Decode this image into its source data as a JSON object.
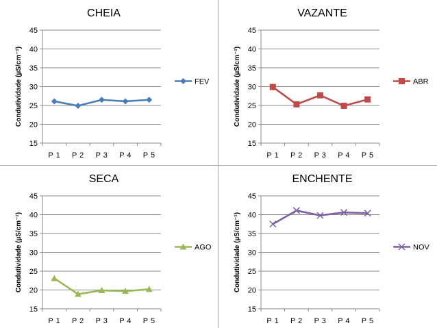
{
  "colors": {
    "grid": "#898989",
    "axis": "#898989",
    "divider": "#a6a6a6"
  },
  "chart_data": [
    {
      "type": "line",
      "title": "CHEIA",
      "ylabel": "Condutividade  (µS/cm⁻¹)",
      "categories": [
        "P 1",
        "P 2",
        "P 3",
        "P 4",
        "P 5"
      ],
      "ylim": [
        15,
        45
      ],
      "yticks": [
        15,
        20,
        25,
        30,
        35,
        40,
        45
      ],
      "grid": true,
      "legend_position": "right",
      "series": [
        {
          "name": "FEV",
          "values": [
            26.1,
            24.9,
            26.5,
            26.1,
            26.5
          ],
          "color": "#4a7ebb",
          "marker": "diamond"
        }
      ]
    },
    {
      "type": "line",
      "title": "VAZANTE",
      "ylabel": "Condutividade  (µS/cm⁻¹)",
      "categories": [
        "P 1",
        "P 2",
        "P 3",
        "P 4",
        "P 5"
      ],
      "ylim": [
        15,
        45
      ],
      "yticks": [
        15,
        20,
        25,
        30,
        35,
        40,
        45
      ],
      "grid": true,
      "legend_position": "right",
      "series": [
        {
          "name": "ABR",
          "values": [
            29.9,
            25.3,
            27.7,
            24.9,
            26.6
          ],
          "color": "#be4b48",
          "marker": "square"
        }
      ]
    },
    {
      "type": "line",
      "title": "SECA",
      "ylabel": "Condutividade  (µS/cm⁻¹)",
      "categories": [
        "P 1",
        "P 2",
        "P 3",
        "P 4",
        "P 5"
      ],
      "ylim": [
        15,
        45
      ],
      "yticks": [
        15,
        20,
        25,
        30,
        35,
        40,
        45
      ],
      "grid": true,
      "legend_position": "right",
      "series": [
        {
          "name": "AGO",
          "values": [
            23.1,
            18.9,
            19.9,
            19.7,
            20.2
          ],
          "color": "#98b954",
          "marker": "triangle"
        }
      ]
    },
    {
      "type": "line",
      "title": "ENCHENTE",
      "ylabel": "Condutividade  (µS/cm⁻¹)",
      "categories": [
        "P 1",
        "P 2",
        "P 3",
        "P 4",
        "P 5"
      ],
      "ylim": [
        15,
        45
      ],
      "yticks": [
        15,
        20,
        25,
        30,
        35,
        40,
        45
      ],
      "grid": true,
      "legend_position": "right",
      "series": [
        {
          "name": "NOV",
          "values": [
            37.5,
            41.1,
            39.8,
            40.6,
            40.4
          ],
          "color": "#7d60a0",
          "marker": "x"
        }
      ]
    }
  ]
}
